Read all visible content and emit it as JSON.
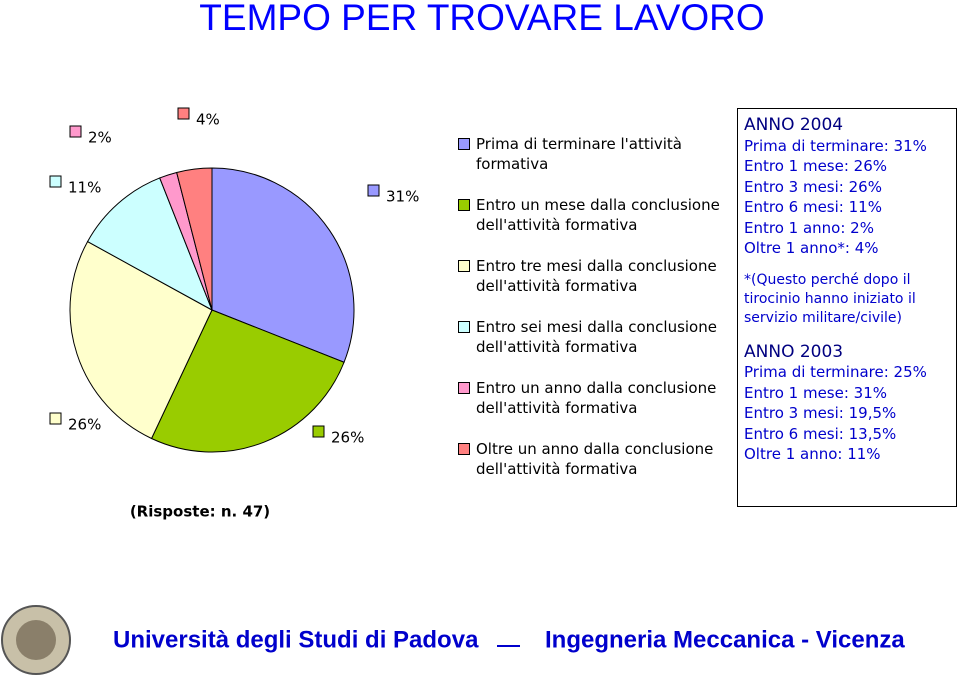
{
  "chart_data": {
    "type": "pie",
    "title": "TEMPO PER TROVARE LAVORO",
    "categories": [
      "Prima di terminare l'attività formativa",
      "Entro un mese dalla conclusione dell'attività formativa",
      "Entro tre mesi dalla conclusione dell'attività formativa",
      "Entro sei mesi dalla conclusione dell'attività formativa",
      "Entro un anno dalla conclusione dell'attività formativa",
      "Oltre un anno dalla conclusione dell'attività formativa"
    ],
    "values": [
      31,
      26,
      26,
      11,
      2,
      4
    ],
    "value_labels": [
      "31%",
      "26%",
      "26%",
      "11%",
      "2%",
      "4%"
    ],
    "colors": [
      "#9999ff",
      "#99cc00",
      "#ffffcc",
      "#ccffff",
      "#ff99cc",
      "#ff8080"
    ],
    "note": "(Risposte: n. 47)"
  },
  "text_box": {
    "sections": [
      {
        "title": "ANNO 2004",
        "lines": [
          "Prima di terminare: 31%",
          "Entro 1 mese: 26%",
          "Entro 3 mesi: 26%",
          "Entro 6 mesi: 11%",
          "Entro 1 anno: 2%",
          "Oltre 1 anno*: 4%"
        ],
        "footnote": "*(Questo perché dopo il tirocinio hanno iniziato il servizio militare/civile)"
      },
      {
        "title": "ANNO 2003",
        "lines": [
          "Prima di terminare: 25%",
          "Entro 1 mese: 31%",
          "Entro 3 mesi: 19,5%",
          "Entro 6 mesi: 13,5%",
          "Oltre 1 anno: 11%"
        ]
      }
    ]
  },
  "footer": {
    "left": "Università degli Studi di Padova",
    "right": "Ingegneria Meccanica - Vicenza"
  }
}
